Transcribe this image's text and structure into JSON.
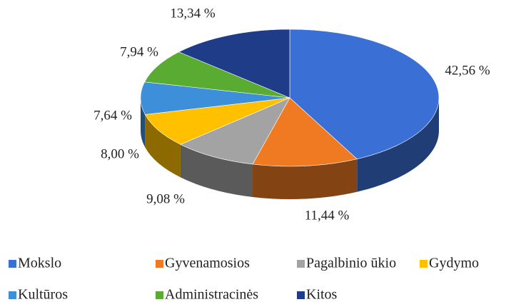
{
  "chart_data": {
    "type": "pie3d",
    "categories": [
      "Mokslo",
      "Gyvenamosios",
      "Pagalbinio ūkio",
      "Gydymo",
      "Kultūros",
      "Administracinės",
      "Kitos"
    ],
    "values": [
      42.56,
      11.44,
      9.08,
      8.0,
      7.64,
      7.94,
      13.34
    ],
    "value_labels": [
      "42,56 %",
      "11,44 %",
      "9,08 %",
      "8,00 %",
      "7,64 %",
      "7,94 %",
      "13,34 %"
    ],
    "colors": [
      "#3a6fd6",
      "#f07a22",
      "#a3a3a3",
      "#ffc000",
      "#3d8fd9",
      "#5aab32",
      "#1f3c88"
    ],
    "legend": "bottom"
  }
}
